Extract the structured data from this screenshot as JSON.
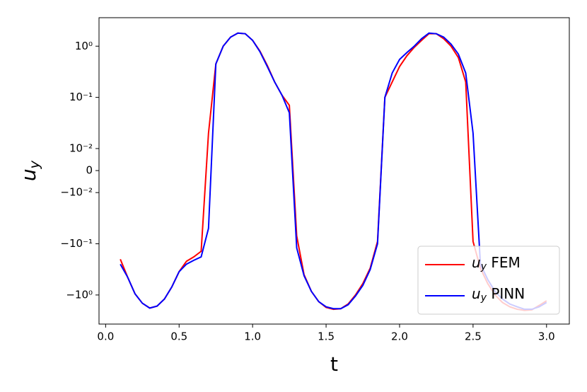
{
  "chart_data": {
    "type": "line",
    "x_label": "t",
    "y_label": "u_y",
    "yscale": "symlog",
    "linthresh": 0.01,
    "linscale": 0.43,
    "xlim": [
      -0.045,
      3.155
    ],
    "ylim": [
      -3.7,
      3.6
    ],
    "xticks": [
      {
        "value": 0,
        "label": "0.0"
      },
      0.5,
      {
        "value": 1,
        "label": "1.0"
      },
      1.5,
      {
        "value": 2,
        "label": "2.0"
      },
      2.5,
      {
        "value": 3,
        "label": "3.0"
      }
    ],
    "yticks": [
      {
        "value": -1,
        "label": "−10⁰"
      },
      {
        "value": -0.1,
        "label": "−10⁻¹"
      },
      {
        "value": -0.01,
        "label": "−10⁻²"
      },
      0,
      {
        "value": 0.01,
        "label": "10⁻²"
      },
      {
        "value": 0.1,
        "label": "10⁻¹"
      },
      {
        "value": 1,
        "label": "10⁰"
      }
    ],
    "legend": "lower right",
    "x": [
      0.1,
      0.15,
      0.2,
      0.25,
      0.3,
      0.35,
      0.4,
      0.45,
      0.5,
      0.55,
      0.6,
      0.65,
      0.7,
      0.75,
      0.8,
      0.85,
      0.9,
      0.95,
      1.0,
      1.05,
      1.1,
      1.15,
      1.2,
      1.25,
      1.3,
      1.35,
      1.4,
      1.45,
      1.5,
      1.55,
      1.6,
      1.65,
      1.7,
      1.75,
      1.8,
      1.85,
      1.9,
      1.95,
      2.0,
      2.05,
      2.1,
      2.15,
      2.2,
      2.25,
      2.3,
      2.35,
      2.4,
      2.45,
      2.5,
      2.55,
      2.6,
      2.65,
      2.7,
      2.75,
      2.8,
      2.85,
      2.9,
      2.95,
      3.0
    ],
    "series": [
      {
        "name": "u_y FEM",
        "color": "#ff0000",
        "values": [
          -0.2,
          -0.45,
          -0.95,
          -1.45,
          -1.8,
          -1.65,
          -1.2,
          -0.7,
          -0.35,
          -0.22,
          -0.18,
          -0.14,
          0.02,
          0.45,
          1.0,
          1.5,
          1.8,
          1.75,
          1.3,
          0.8,
          0.42,
          0.2,
          0.11,
          0.07,
          -0.07,
          -0.4,
          -0.85,
          -1.35,
          -1.75,
          -1.9,
          -1.85,
          -1.5,
          -1.0,
          -0.6,
          -0.3,
          -0.09,
          0.1,
          0.2,
          0.4,
          0.65,
          0.95,
          1.3,
          1.75,
          1.75,
          1.4,
          1.0,
          0.6,
          0.2,
          -0.09,
          -0.3,
          -0.6,
          -1.0,
          -1.4,
          -1.7,
          -1.9,
          -2.0,
          -1.95,
          -1.6,
          -1.3
        ]
      },
      {
        "name": "u_y PINN",
        "color": "#0000ff",
        "values": [
          -0.25,
          -0.45,
          -0.95,
          -1.45,
          -1.8,
          -1.65,
          -1.2,
          -0.7,
          -0.35,
          -0.25,
          -0.21,
          -0.18,
          -0.05,
          0.45,
          1.0,
          1.5,
          1.8,
          1.75,
          1.3,
          0.78,
          0.4,
          0.2,
          0.11,
          0.05,
          -0.12,
          -0.42,
          -0.85,
          -1.35,
          -1.7,
          -1.85,
          -1.85,
          -1.55,
          -1.05,
          -0.65,
          -0.32,
          -0.1,
          0.1,
          0.3,
          0.55,
          0.75,
          1.0,
          1.4,
          1.8,
          1.75,
          1.5,
          1.1,
          0.7,
          0.3,
          0.02,
          -0.25,
          -0.5,
          -0.85,
          -1.2,
          -1.5,
          -1.7,
          -1.9,
          -1.9,
          -1.7,
          -1.4
        ]
      }
    ]
  }
}
